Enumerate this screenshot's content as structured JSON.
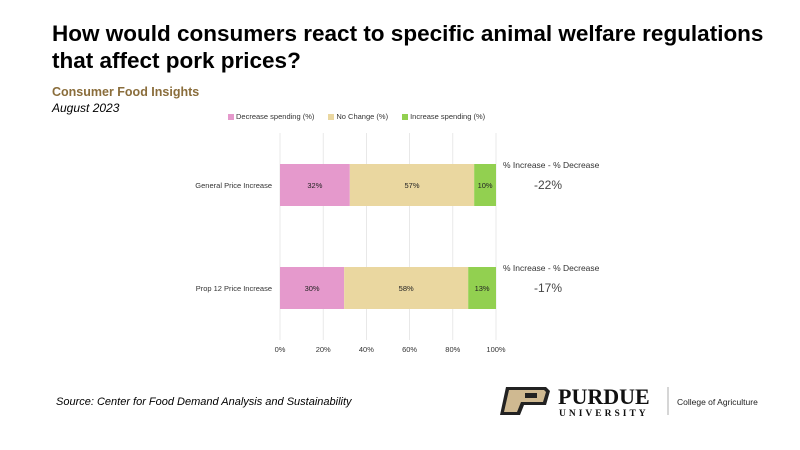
{
  "title": "How would consumers react to specific animal welfare regulations that affect pork prices?",
  "subtitle": "Consumer Food Insights",
  "date": "August 2023",
  "source": "Source:  Center for Food Demand Analysis and Sustainability",
  "logo": {
    "name": "PURDUE",
    "sub": "UNIVERSITY",
    "college": "College of Agriculture"
  },
  "chart_data": {
    "type": "bar",
    "orientation": "horizontal-stacked-100",
    "categories": [
      "General Price Increase",
      "Prop 12 Price Increase"
    ],
    "series": [
      {
        "name": "Decrease spending (%)",
        "color": "#e599cc",
        "values": [
          32,
          30
        ],
        "labels": [
          "32%",
          "30%"
        ]
      },
      {
        "name": "No Change (%)",
        "color": "#ead7a0",
        "values": [
          57,
          58
        ],
        "labels": [
          "57%",
          "58%"
        ]
      },
      {
        "name": "Increase spending (%)",
        "color": "#92d050",
        "values": [
          10,
          13
        ],
        "labels": [
          "10%",
          "13%"
        ]
      }
    ],
    "annotations": [
      {
        "header": "% Increase - % Decrease",
        "value": "-22%"
      },
      {
        "header": "% Increase - % Decrease",
        "value": "-17%"
      }
    ],
    "xlim": [
      0,
      100
    ],
    "xticks": [
      "0%",
      "20%",
      "40%",
      "60%",
      "80%",
      "100%"
    ],
    "grid": true,
    "legend": "top"
  }
}
